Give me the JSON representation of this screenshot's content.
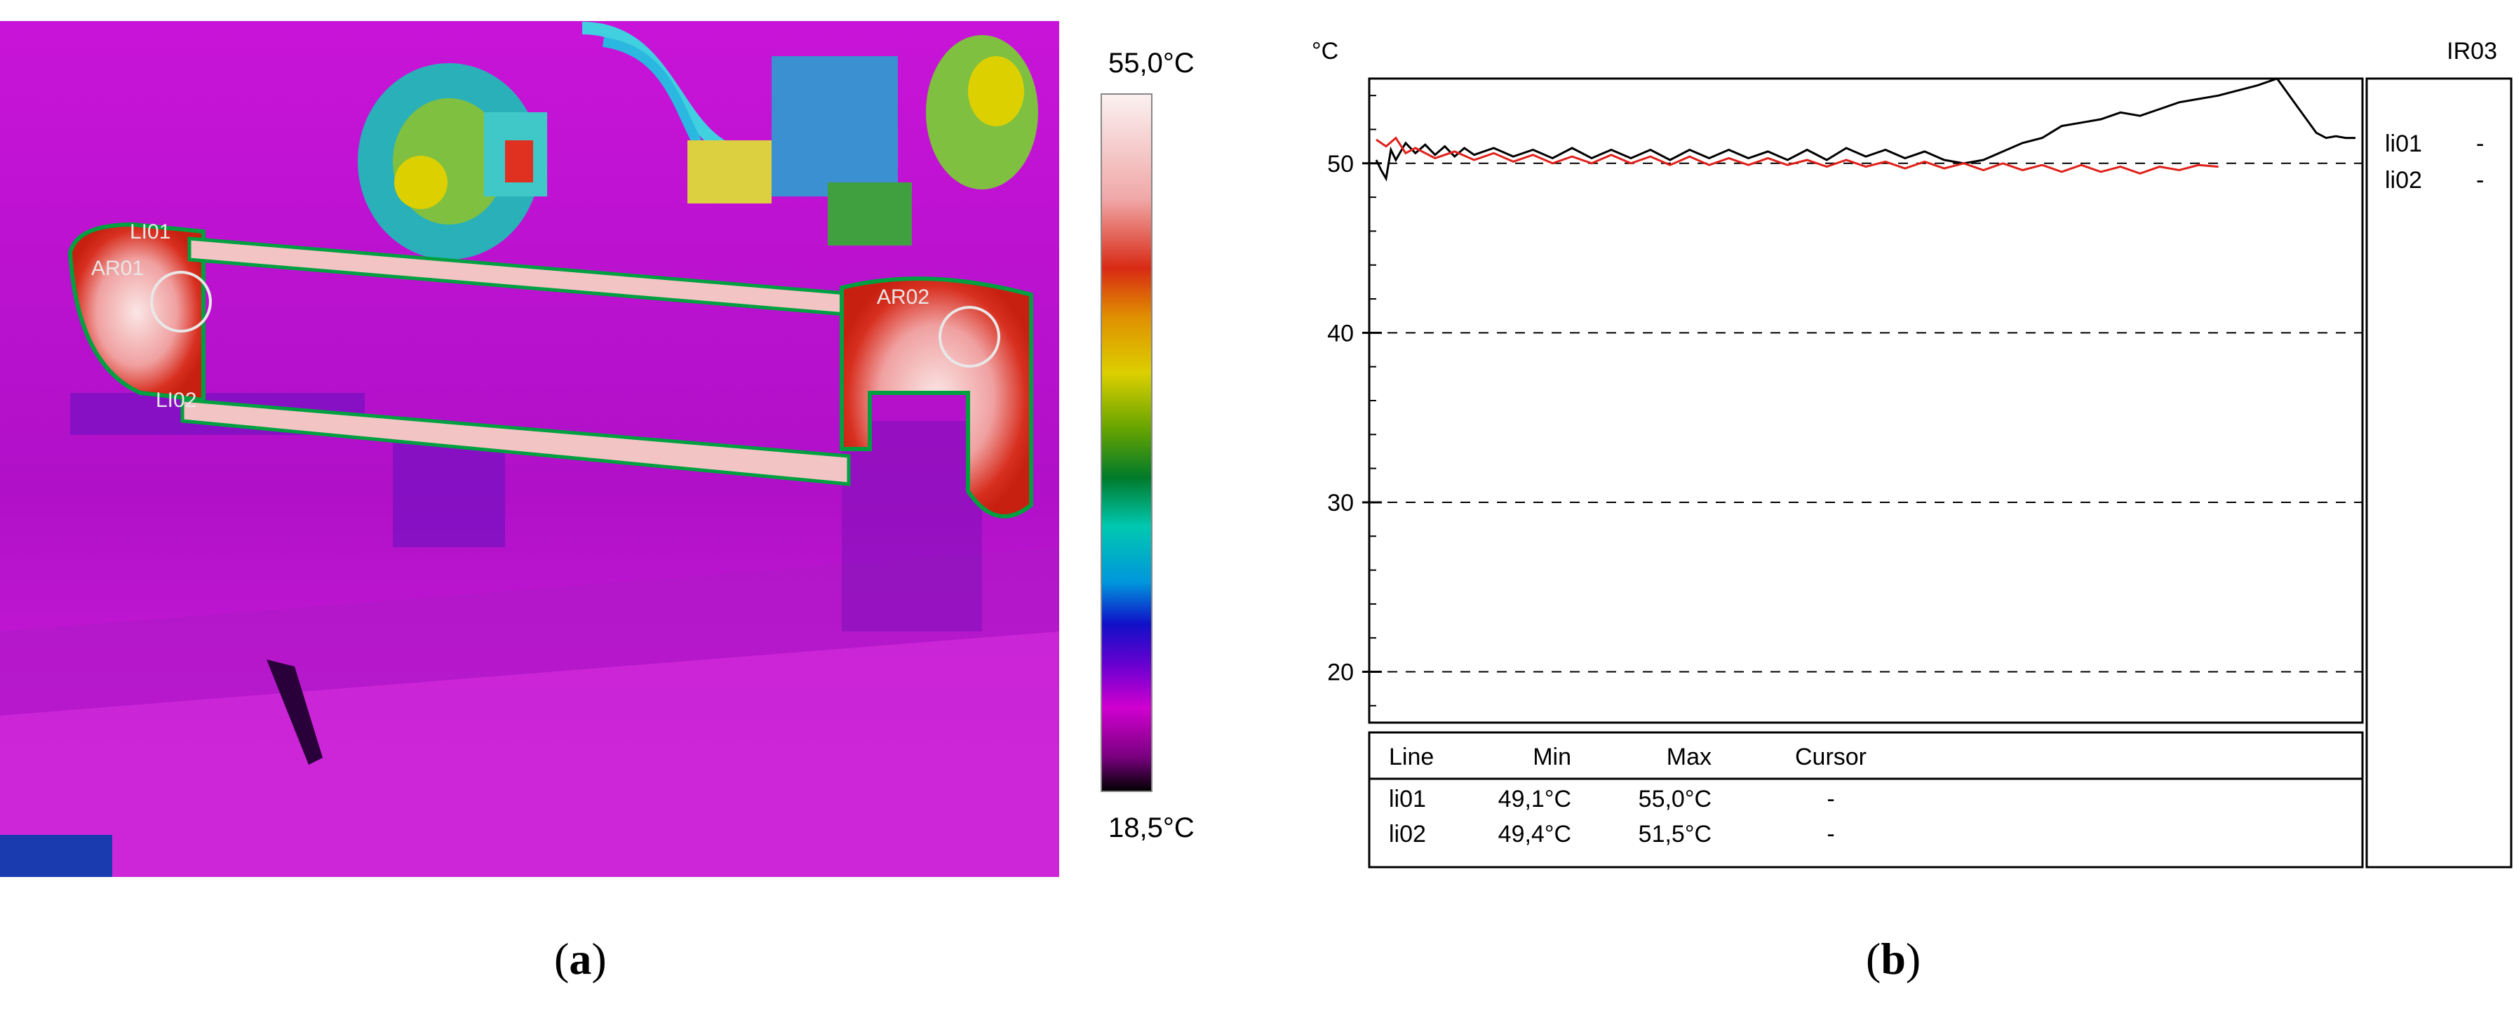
{
  "panel_a": {
    "caption_letter": "a",
    "scale_max": "55,0°C",
    "scale_min": "18,5°C",
    "scale_colors": [
      "#fbf1f1",
      "#f2b6b6",
      "#d82a14",
      "#e0a400",
      "#dccf00",
      "#66a400",
      "#007a2a",
      "#00c8b0",
      "#0096dc",
      "#1010c8",
      "#6a00d0",
      "#d000d0",
      "#7a0080",
      "#000000"
    ],
    "markers": {
      "li01": "LI01",
      "li02": "LI02",
      "ar01": "AR01",
      "ar02": "AR02"
    }
  },
  "panel_b": {
    "caption_letter": "b",
    "chart_data": {
      "type": "line",
      "title": "IR03",
      "ylabel": "°C",
      "ylim": [
        17,
        55
      ],
      "yticks": [
        20,
        30,
        40,
        50
      ],
      "grid": "dashed horizontal at major ticks",
      "legend_position": "right",
      "series": [
        {
          "name": "li01",
          "color": "#000000",
          "x": [
            0,
            0.005,
            0.01,
            0.015,
            0.02,
            0.03,
            0.04,
            0.05,
            0.06,
            0.07,
            0.08,
            0.09,
            0.1,
            0.12,
            0.14,
            0.16,
            0.18,
            0.2,
            0.22,
            0.24,
            0.26,
            0.28,
            0.3,
            0.32,
            0.34,
            0.36,
            0.38,
            0.4,
            0.42,
            0.44,
            0.46,
            0.48,
            0.5,
            0.52,
            0.54,
            0.56,
            0.58,
            0.6,
            0.62,
            0.64,
            0.66,
            0.68,
            0.7,
            0.72,
            0.74,
            0.76,
            0.78,
            0.8,
            0.82,
            0.84,
            0.86,
            0.88,
            0.9,
            0.92,
            0.94,
            0.96,
            0.97,
            0.98,
            0.99,
            1.0
          ],
          "values": [
            50.2,
            49.6,
            49.1,
            50.8,
            50.2,
            51.2,
            50.6,
            51.1,
            50.5,
            51.0,
            50.4,
            50.9,
            50.5,
            50.9,
            50.4,
            50.8,
            50.3,
            50.9,
            50.3,
            50.8,
            50.3,
            50.8,
            50.2,
            50.8,
            50.3,
            50.8,
            50.3,
            50.7,
            50.2,
            50.8,
            50.2,
            50.9,
            50.4,
            50.8,
            50.3,
            50.7,
            50.2,
            50.0,
            50.2,
            50.7,
            51.2,
            51.5,
            52.2,
            52.4,
            52.6,
            53.0,
            52.8,
            53.2,
            53.6,
            53.8,
            54.0,
            54.3,
            54.6,
            55.0,
            53.4,
            51.8,
            51.5,
            51.6,
            51.5,
            51.5
          ]
        },
        {
          "name": "li02",
          "color": "#e0201a",
          "x": [
            0,
            0.01,
            0.02,
            0.03,
            0.04,
            0.06,
            0.08,
            0.1,
            0.12,
            0.14,
            0.16,
            0.18,
            0.2,
            0.22,
            0.24,
            0.26,
            0.28,
            0.3,
            0.32,
            0.34,
            0.36,
            0.38,
            0.4,
            0.42,
            0.44,
            0.46,
            0.48,
            0.5,
            0.52,
            0.54,
            0.56,
            0.58,
            0.6,
            0.62,
            0.64,
            0.66,
            0.68,
            0.7,
            0.72,
            0.74,
            0.76,
            0.78,
            0.8,
            0.82,
            0.84,
            0.86
          ],
          "values": [
            51.4,
            51.0,
            51.5,
            50.6,
            50.9,
            50.3,
            50.7,
            50.2,
            50.6,
            50.1,
            50.5,
            50.0,
            50.4,
            50.0,
            50.5,
            50.0,
            50.4,
            49.9,
            50.4,
            49.9,
            50.3,
            49.9,
            50.3,
            49.9,
            50.2,
            49.8,
            50.2,
            49.8,
            50.1,
            49.7,
            50.1,
            49.7,
            50.0,
            49.6,
            50.0,
            49.6,
            49.9,
            49.5,
            49.9,
            49.5,
            49.8,
            49.4,
            49.8,
            49.6,
            49.9,
            49.8
          ]
        }
      ],
      "legend": [
        {
          "name": "li01",
          "marker": "-"
        },
        {
          "name": "li02",
          "marker": "-"
        }
      ]
    },
    "table": {
      "headers": [
        "Line",
        "Min",
        "Max",
        "Cursor"
      ],
      "rows": [
        [
          "li01",
          "49,1°C",
          "55,0°C",
          "-"
        ],
        [
          "li02",
          "49,4°C",
          "51,5°C",
          "-"
        ]
      ]
    }
  }
}
